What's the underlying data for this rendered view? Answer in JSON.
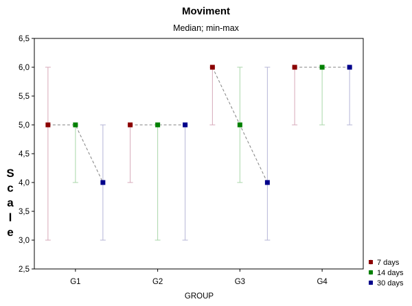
{
  "chart_data": {
    "type": "scatter",
    "title": "Moviment",
    "subtitle": "Median; min-max",
    "xlabel": "GROUP",
    "ylabel": "Scale",
    "categories": [
      "G1",
      "G2",
      "G3",
      "G4"
    ],
    "ylim": [
      2.5,
      6.5
    ],
    "yticks": [
      "2,5",
      "3,0",
      "3,5",
      "4,0",
      "4,5",
      "5,0",
      "5,5",
      "6,0",
      "6,5"
    ],
    "ytick_values": [
      2.5,
      3.0,
      3.5,
      4.0,
      4.5,
      5.0,
      5.5,
      6.0,
      6.5
    ],
    "legend_position": "bottom-right",
    "series": [
      {
        "name": "7 days",
        "color": "#8b0000",
        "whisker_color": "#d6a8b8",
        "median": [
          5.0,
          5.0,
          6.0,
          6.0
        ],
        "min": [
          3.0,
          4.0,
          5.0,
          5.0
        ],
        "max": [
          6.0,
          5.0,
          6.0,
          6.0
        ]
      },
      {
        "name": "14 days",
        "color": "#008000",
        "whisker_color": "#a8d6a8",
        "median": [
          5.0,
          5.0,
          5.0,
          6.0
        ],
        "min": [
          4.0,
          3.0,
          4.0,
          5.0
        ],
        "max": [
          5.0,
          5.0,
          6.0,
          6.0
        ]
      },
      {
        "name": "30 days",
        "color": "#00008b",
        "whisker_color": "#b4b4d6",
        "median": [
          4.0,
          5.0,
          4.0,
          6.0
        ],
        "min": [
          3.0,
          3.0,
          3.0,
          5.0
        ],
        "max": [
          5.0,
          5.0,
          6.0,
          6.0
        ]
      }
    ]
  }
}
